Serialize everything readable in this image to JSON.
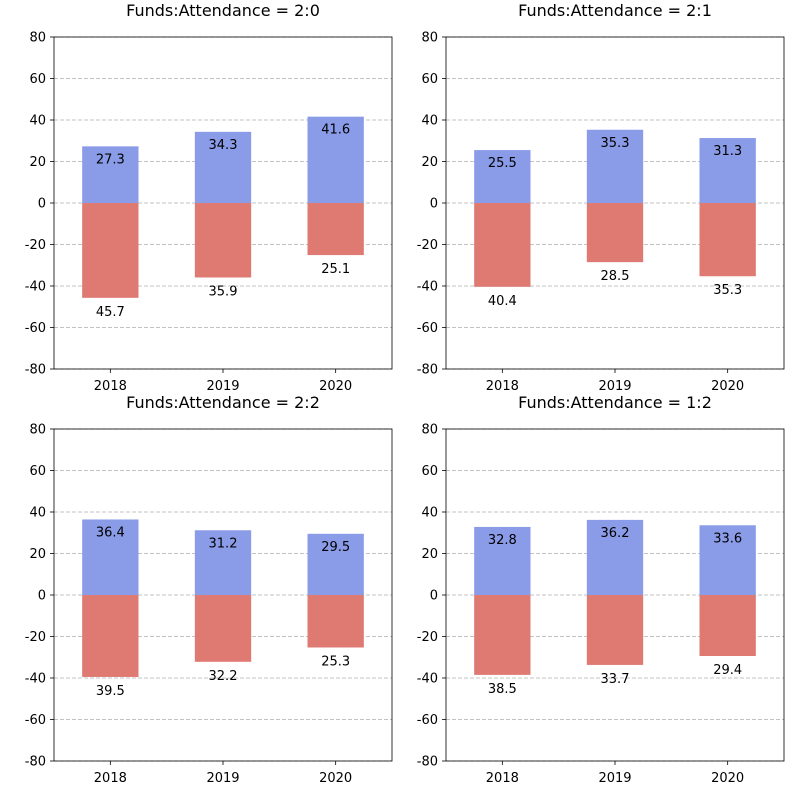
{
  "colors": {
    "positive": "#8a9be8",
    "negative": "#df7a73",
    "grid": "#b0b0b0",
    "axis": "#000000"
  },
  "chart_data": [
    {
      "type": "bar",
      "title": "Funds:Attendance = 2:0",
      "categories": [
        "2018",
        "2019",
        "2020"
      ],
      "series": [
        {
          "values": [
            27.3,
            34.3,
            41.6
          ]
        },
        {
          "values": [
            -45.7,
            -35.9,
            -25.1
          ]
        }
      ],
      "value_labels": [
        [
          "27.3",
          "34.3",
          "41.6"
        ],
        [
          "45.7",
          "35.9",
          "25.1"
        ]
      ],
      "ylim": [
        -80,
        80
      ],
      "yticks": [
        -80,
        -60,
        -40,
        -20,
        0,
        20,
        40,
        60,
        80
      ],
      "grid": "horizontal dashed"
    },
    {
      "type": "bar",
      "title": "Funds:Attendance = 2:1",
      "categories": [
        "2018",
        "2019",
        "2020"
      ],
      "series": [
        {
          "values": [
            25.5,
            35.3,
            31.3
          ]
        },
        {
          "values": [
            -40.4,
            -28.5,
            -35.3
          ]
        }
      ],
      "value_labels": [
        [
          "25.5",
          "35.3",
          "31.3"
        ],
        [
          "40.4",
          "28.5",
          "35.3"
        ]
      ],
      "ylim": [
        -80,
        80
      ],
      "yticks": [
        -80,
        -60,
        -40,
        -20,
        0,
        20,
        40,
        60,
        80
      ],
      "grid": "horizontal dashed"
    },
    {
      "type": "bar",
      "title": "Funds:Attendance = 2:2",
      "categories": [
        "2018",
        "2019",
        "2020"
      ],
      "series": [
        {
          "values": [
            36.4,
            31.2,
            29.5
          ]
        },
        {
          "values": [
            -39.5,
            -32.2,
            -25.3
          ]
        }
      ],
      "value_labels": [
        [
          "36.4",
          "31.2",
          "29.5"
        ],
        [
          "39.5",
          "32.2",
          "25.3"
        ]
      ],
      "ylim": [
        -80,
        80
      ],
      "yticks": [
        -80,
        -60,
        -40,
        -20,
        0,
        20,
        40,
        60,
        80
      ],
      "grid": "horizontal dashed"
    },
    {
      "type": "bar",
      "title": "Funds:Attendance = 1:2",
      "categories": [
        "2018",
        "2019",
        "2020"
      ],
      "series": [
        {
          "values": [
            32.8,
            36.2,
            33.6
          ]
        },
        {
          "values": [
            -38.5,
            -33.7,
            -29.4
          ]
        }
      ],
      "value_labels": [
        [
          "32.8",
          "36.2",
          "33.6"
        ],
        [
          "38.5",
          "33.7",
          "29.4"
        ]
      ],
      "ylim": [
        -80,
        80
      ],
      "yticks": [
        -80,
        -60,
        -40,
        -20,
        0,
        20,
        40,
        60,
        80
      ],
      "grid": "horizontal dashed"
    }
  ]
}
